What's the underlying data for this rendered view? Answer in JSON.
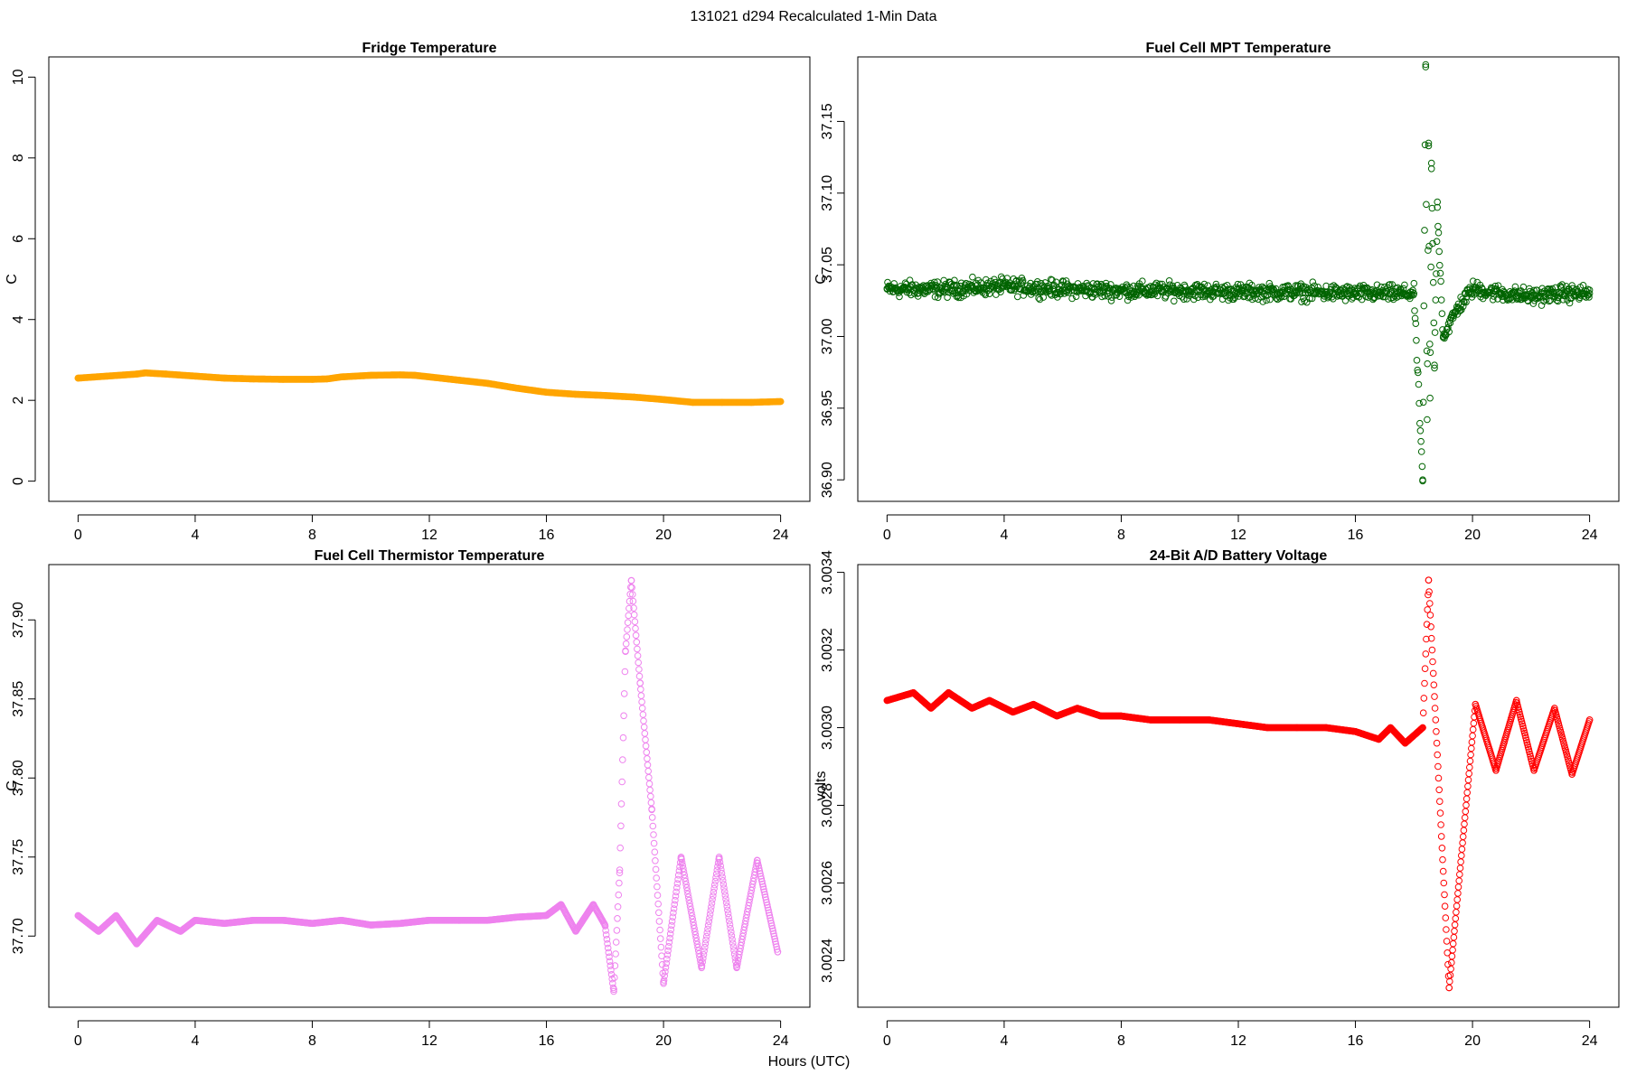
{
  "figure": {
    "title": "131021   d294   Recalculated 1-Min Data",
    "xlabel": "Hours (UTC)"
  },
  "chart_data": [
    {
      "type": "scatter",
      "title": "Fridge Temperature",
      "xlabel": "",
      "ylabel": "C",
      "xlim": [
        -1,
        25
      ],
      "ylim": [
        -0.5,
        10.5
      ],
      "x_ticks": [
        0,
        4,
        8,
        12,
        16,
        20,
        24
      ],
      "y_ticks": [
        0,
        2,
        4,
        6,
        8,
        10
      ],
      "y_tick_labels": [
        "0",
        "2",
        "4",
        "6",
        "8",
        "10"
      ],
      "color": "#ffa500",
      "marker": "filled-circle",
      "series": [
        {
          "x": [
            0,
            1,
            2,
            2.3,
            3,
            4,
            5,
            6,
            7,
            8,
            8.5,
            9,
            10,
            11,
            11.5,
            12,
            13,
            14,
            15,
            16,
            17,
            18,
            19,
            20,
            21,
            22,
            23,
            24
          ],
          "values": [
            2.55,
            2.6,
            2.65,
            2.68,
            2.65,
            2.6,
            2.55,
            2.53,
            2.52,
            2.52,
            2.53,
            2.58,
            2.62,
            2.63,
            2.62,
            2.58,
            2.5,
            2.42,
            2.3,
            2.2,
            2.15,
            2.12,
            2.08,
            2.02,
            1.95,
            1.95,
            1.95,
            1.97
          ]
        }
      ]
    },
    {
      "type": "scatter",
      "title": "Fuel Cell MPT Temperature",
      "xlabel": "",
      "ylabel": "C",
      "xlim": [
        -1,
        25
      ],
      "ylim": [
        36.885,
        37.195
      ],
      "x_ticks": [
        0,
        4,
        8,
        12,
        16,
        20,
        24
      ],
      "y_ticks": [
        36.9,
        36.95,
        37.0,
        37.05,
        37.1,
        37.15
      ],
      "y_tick_labels": [
        "36.90",
        "36.95",
        "37.00",
        "37.05",
        "37.10",
        "37.15"
      ],
      "color": "#006400",
      "marker": "open-circle",
      "series": [
        {
          "x": [
            0,
            2,
            4,
            6,
            8,
            10,
            12,
            14,
            16,
            18,
            18.3,
            18.4,
            18.45,
            18.5,
            18.55,
            18.6,
            18.7,
            18.8,
            19,
            19.5,
            20,
            21,
            22,
            23,
            24
          ],
          "values": [
            37.033,
            37.033,
            37.035,
            37.033,
            37.032,
            37.032,
            37.031,
            37.031,
            37.03,
            37.03,
            36.9,
            37.188,
            36.942,
            37.133,
            36.957,
            37.117,
            36.98,
            37.09,
            37.0,
            37.02,
            37.033,
            37.03,
            37.028,
            37.03,
            37.03
          ],
          "noise": 0.007
        }
      ]
    },
    {
      "type": "scatter",
      "title": "Fuel Cell Thermistor Temperature",
      "xlabel": "",
      "ylabel": "C",
      "xlim": [
        -1,
        25
      ],
      "ylim": [
        37.655,
        37.935
      ],
      "x_ticks": [
        0,
        4,
        8,
        12,
        16,
        20,
        24
      ],
      "y_ticks": [
        37.7,
        37.75,
        37.8,
        37.85,
        37.9
      ],
      "y_tick_labels": [
        "37.70",
        "37.75",
        "37.80",
        "37.85",
        "37.90"
      ],
      "color": "#ee82ee",
      "marker": "open-circle",
      "series": [
        {
          "x": [
            0,
            0.7,
            1.3,
            2,
            2.7,
            3.5,
            4,
            5,
            6,
            7,
            8,
            9,
            10,
            11,
            12,
            13,
            14,
            15,
            16,
            16.5,
            17,
            17.6,
            18,
            18.3,
            18.5,
            18.7,
            18.9,
            19.2,
            19.6,
            20,
            20.6,
            21.3,
            21.9,
            22.5,
            23.2,
            23.9
          ],
          "values": [
            37.713,
            37.703,
            37.713,
            37.695,
            37.71,
            37.703,
            37.71,
            37.708,
            37.71,
            37.71,
            37.708,
            37.71,
            37.707,
            37.708,
            37.71,
            37.71,
            37.71,
            37.712,
            37.713,
            37.72,
            37.703,
            37.72,
            37.707,
            37.665,
            37.74,
            37.88,
            37.925,
            37.86,
            37.78,
            37.67,
            37.75,
            37.68,
            37.75,
            37.68,
            37.748,
            37.69
          ]
        }
      ]
    },
    {
      "type": "scatter",
      "title": "24-Bit A/D Battery Voltage",
      "xlabel": "",
      "ylabel": "volts",
      "xlim": [
        -1,
        25
      ],
      "ylim": [
        3.00228,
        3.00342
      ],
      "x_ticks": [
        0,
        4,
        8,
        12,
        16,
        20,
        24
      ],
      "y_ticks": [
        3.0024,
        3.0026,
        3.0028,
        3.003,
        3.0032,
        3.0034
      ],
      "y_tick_labels": [
        "3.0024",
        "3.0026",
        "3.0028",
        "3.0030",
        "3.0032",
        "3.0034"
      ],
      "color": "#ff0000",
      "marker": "open-circle",
      "series": [
        {
          "x": [
            0,
            0.9,
            1.5,
            2.1,
            2.9,
            3.5,
            4.3,
            5,
            5.8,
            6.5,
            7.3,
            8,
            9,
            10,
            11,
            12,
            13,
            14,
            15,
            16,
            16.8,
            17.2,
            17.7,
            18.3,
            18.5,
            19.2,
            20.1,
            20.8,
            21.5,
            22.1,
            22.8,
            23.4,
            24
          ],
          "values": [
            3.00307,
            3.00309,
            3.00305,
            3.00309,
            3.00305,
            3.00307,
            3.00304,
            3.00306,
            3.00303,
            3.00305,
            3.00303,
            3.00303,
            3.00302,
            3.00302,
            3.00302,
            3.00301,
            3.003,
            3.003,
            3.003,
            3.00299,
            3.00297,
            3.003,
            3.00296,
            3.003,
            3.00338,
            3.00233,
            3.00306,
            3.00289,
            3.00307,
            3.00289,
            3.00305,
            3.00288,
            3.00302
          ]
        }
      ]
    }
  ]
}
